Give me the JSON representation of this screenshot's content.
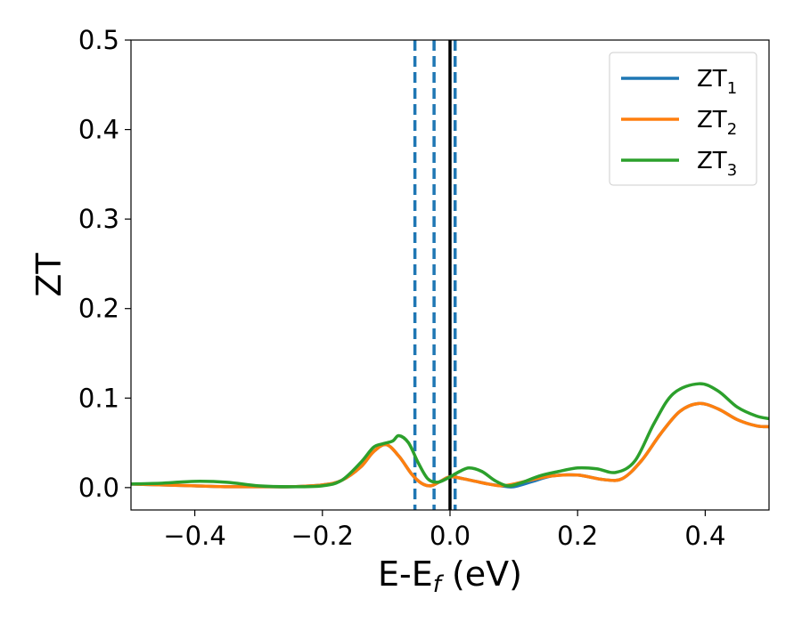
{
  "chart_data": {
    "type": "line",
    "xlabel": "E-E",
    "xlabel_sub": "f",
    "xlabel_unit": " (eV)",
    "ylabel": "ZT",
    "xlim": [
      -0.5,
      0.5
    ],
    "ylim": [
      -0.025,
      0.5
    ],
    "xticks": [
      -0.4,
      -0.2,
      0.0,
      0.2,
      0.4
    ],
    "xtick_labels": [
      "−0.4",
      "−0.2",
      "0.0",
      "0.2",
      "0.4"
    ],
    "yticks": [
      0.0,
      0.1,
      0.2,
      0.3,
      0.4,
      0.5
    ],
    "ytick_labels": [
      "0.0",
      "0.1",
      "0.2",
      "0.3",
      "0.4",
      "0.5"
    ],
    "grid": false,
    "legend_position": "top-right",
    "vlines": [
      {
        "x": -0.055,
        "style": "dashed",
        "color": "#1f77b4"
      },
      {
        "x": -0.025,
        "style": "dashed",
        "color": "#1f77b4"
      },
      {
        "x": 0.008,
        "style": "dashed",
        "color": "#1f77b4"
      },
      {
        "x": 0.0,
        "style": "solid",
        "color": "#000000"
      }
    ],
    "series": [
      {
        "name": "ZT",
        "name_sub": "1",
        "color": "#1f77b4",
        "x": [
          -0.5,
          -0.45,
          -0.4,
          -0.35,
          -0.3,
          -0.25,
          -0.2,
          -0.17,
          -0.14,
          -0.12,
          -0.1,
          -0.08,
          -0.06,
          -0.045,
          -0.03,
          -0.015,
          0.0,
          0.02,
          0.04,
          0.06,
          0.08,
          0.1,
          0.13,
          0.16,
          0.2,
          0.24,
          0.27,
          0.3,
          0.33,
          0.36,
          0.39,
          0.42,
          0.45,
          0.48,
          0.5
        ],
        "values": [
          0.004,
          0.003,
          0.002,
          0.001,
          0.001,
          0.001,
          0.003,
          0.008,
          0.023,
          0.04,
          0.048,
          0.035,
          0.015,
          0.005,
          0.002,
          0.007,
          0.012,
          0.01,
          0.007,
          0.004,
          0.002,
          0.001,
          0.007,
          0.013,
          0.014,
          0.009,
          0.01,
          0.03,
          0.06,
          0.085,
          0.094,
          0.088,
          0.076,
          0.069,
          0.068
        ]
      },
      {
        "name": "ZT",
        "name_sub": "2",
        "color": "#ff7f0e",
        "x": [
          -0.5,
          -0.45,
          -0.4,
          -0.35,
          -0.3,
          -0.25,
          -0.2,
          -0.17,
          -0.14,
          -0.12,
          -0.1,
          -0.08,
          -0.06,
          -0.045,
          -0.03,
          -0.015,
          0.0,
          0.02,
          0.04,
          0.06,
          0.08,
          0.1,
          0.13,
          0.16,
          0.2,
          0.24,
          0.27,
          0.3,
          0.33,
          0.36,
          0.39,
          0.42,
          0.45,
          0.48,
          0.5
        ],
        "values": [
          0.004,
          0.003,
          0.002,
          0.001,
          0.001,
          0.001,
          0.003,
          0.008,
          0.023,
          0.04,
          0.048,
          0.035,
          0.015,
          0.005,
          0.002,
          0.007,
          0.012,
          0.01,
          0.007,
          0.004,
          0.002,
          0.004,
          0.009,
          0.013,
          0.014,
          0.009,
          0.01,
          0.03,
          0.06,
          0.085,
          0.094,
          0.088,
          0.076,
          0.069,
          0.068
        ]
      },
      {
        "name": "ZT",
        "name_sub": "3",
        "color": "#2ca02c",
        "x": [
          -0.5,
          -0.45,
          -0.4,
          -0.35,
          -0.3,
          -0.25,
          -0.2,
          -0.17,
          -0.14,
          -0.12,
          -0.105,
          -0.09,
          -0.08,
          -0.065,
          -0.05,
          -0.035,
          -0.02,
          -0.005,
          0.015,
          0.03,
          0.05,
          0.07,
          0.09,
          0.11,
          0.14,
          0.17,
          0.2,
          0.23,
          0.26,
          0.29,
          0.32,
          0.35,
          0.39,
          0.42,
          0.45,
          0.48,
          0.5
        ],
        "values": [
          0.004,
          0.005,
          0.007,
          0.006,
          0.002,
          0.001,
          0.002,
          0.008,
          0.028,
          0.045,
          0.049,
          0.052,
          0.058,
          0.05,
          0.028,
          0.01,
          0.006,
          0.01,
          0.018,
          0.022,
          0.018,
          0.008,
          0.002,
          0.005,
          0.013,
          0.018,
          0.022,
          0.021,
          0.017,
          0.03,
          0.072,
          0.105,
          0.116,
          0.108,
          0.09,
          0.08,
          0.077
        ]
      }
    ]
  }
}
